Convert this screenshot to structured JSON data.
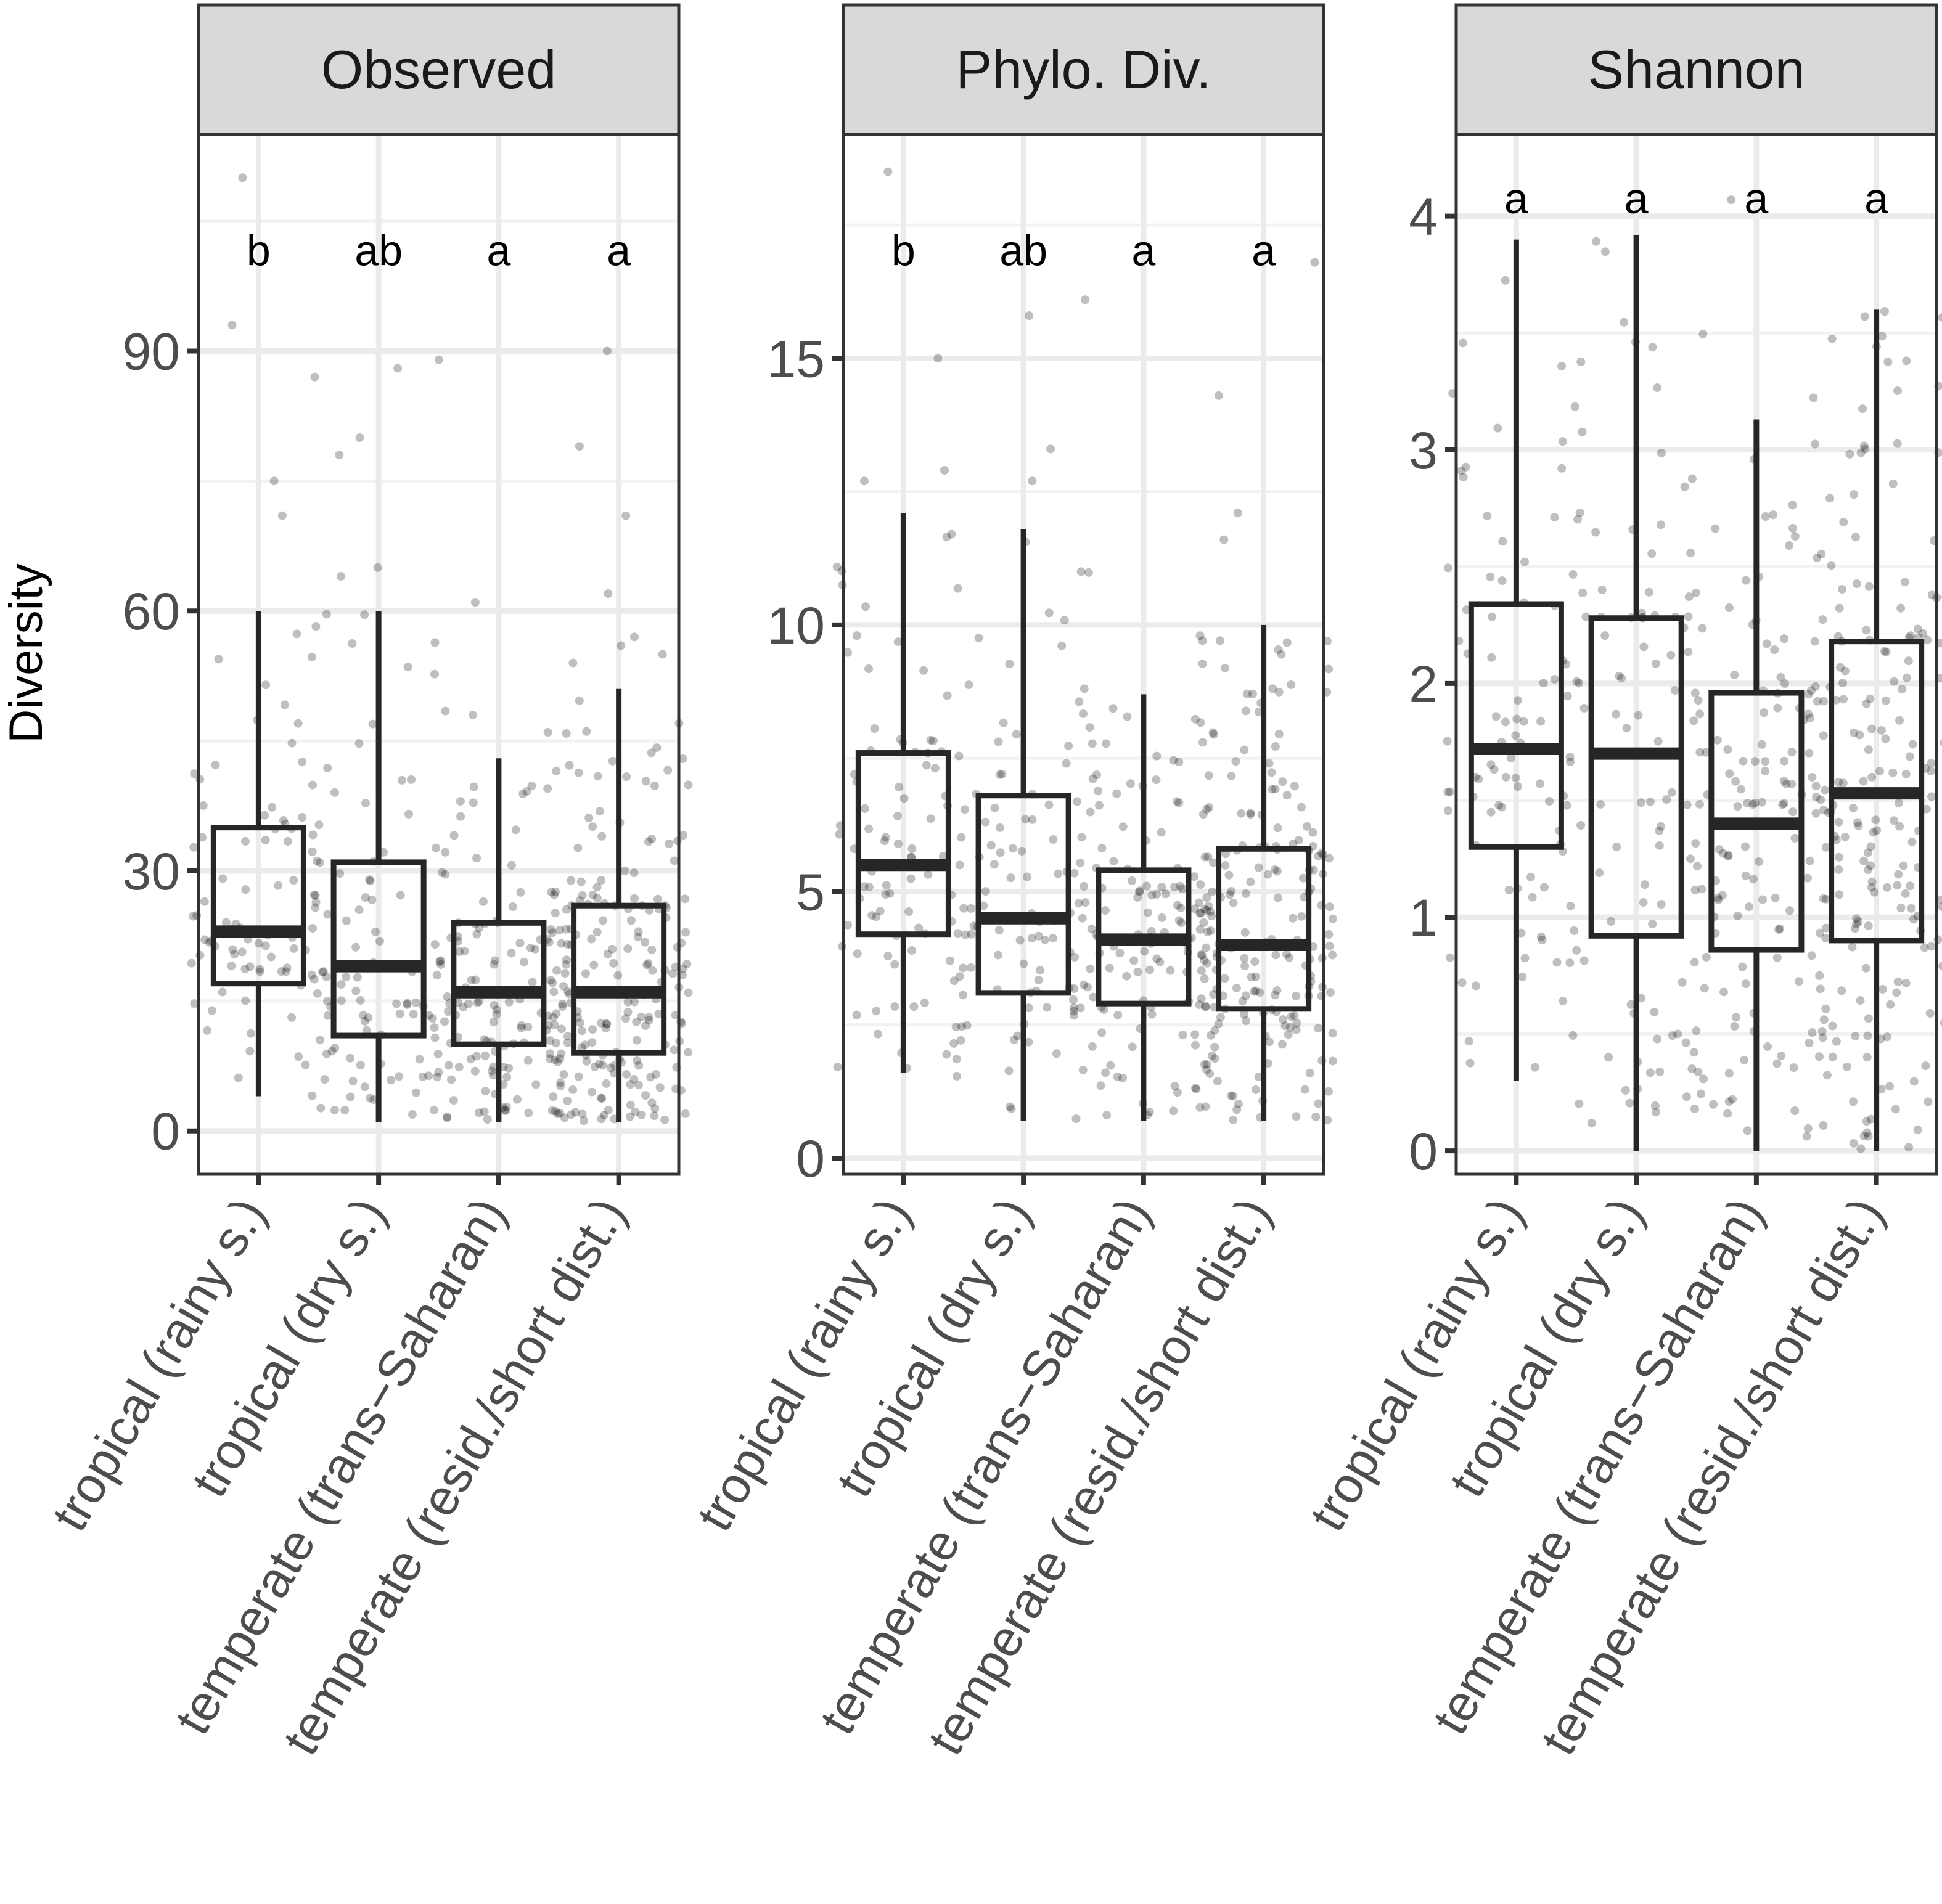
{
  "chart_data": {
    "type": "boxplot",
    "ylabel": "Diversity",
    "categories": [
      "tropical (rainy s.)",
      "tropical (dry s.)",
      "temperate (trans−Saharan)",
      "temperate (resid./short dist.)"
    ],
    "colors": {
      "box": "#262626",
      "point": "#000000",
      "strip": "#d9d9d9",
      "grid": "#ebebeb"
    },
    "panels": [
      {
        "title": "Observed",
        "ylim": [
          -5,
          115
        ],
        "yticks": [
          0,
          30,
          60,
          90
        ],
        "yticklabels": [
          "0",
          "30",
          "60",
          "90"
        ],
        "groups": [
          {
            "letter": "b",
            "whisker_low": 4,
            "q1": 17,
            "median": 23,
            "q3": 35,
            "whisker_high": 60,
            "outliers": [
              71,
              75,
              87,
              93,
              110
            ],
            "n": 90
          },
          {
            "letter": "ab",
            "whisker_low": 1,
            "q1": 11,
            "median": 19,
            "q3": 31,
            "whisker_high": 60,
            "outliers": [
              64,
              65,
              78,
              80,
              88,
              89
            ],
            "n": 90
          },
          {
            "letter": "a",
            "whisker_low": 1,
            "q1": 10,
            "median": 16,
            "q3": 24,
            "whisker_high": 43,
            "outliers": [
              46,
              48,
              61
            ],
            "n": 130
          },
          {
            "letter": "a",
            "whisker_low": 1,
            "q1": 9,
            "median": 16,
            "q3": 26,
            "whisker_high": 51,
            "outliers": [
              54,
              55,
              56,
              57,
              62,
              71,
              79,
              90
            ],
            "n": 200
          }
        ]
      },
      {
        "title": "Phylo. Div.",
        "ylim": [
          -0.3,
          19.2
        ],
        "yticks": [
          0,
          5,
          10,
          15
        ],
        "yticklabels": [
          "0",
          "5",
          "10",
          "15"
        ],
        "groups": [
          {
            "letter": "b",
            "whisker_low": 1.6,
            "q1": 4.2,
            "median": 5.5,
            "q3": 7.6,
            "whisker_high": 12.1,
            "outliers": [
              12.7,
              12.9,
              15.0,
              18.5
            ],
            "n": 90
          },
          {
            "letter": "ab",
            "whisker_low": 0.7,
            "q1": 3.1,
            "median": 4.5,
            "q3": 6.8,
            "whisker_high": 11.8,
            "outliers": [
              12.7,
              13.3,
              15.8
            ],
            "n": 90
          },
          {
            "letter": "a",
            "whisker_low": 0.7,
            "q1": 2.9,
            "median": 4.1,
            "q3": 5.4,
            "whisker_high": 8.7,
            "outliers": [
              9.8,
              11.0,
              16.1
            ],
            "n": 130
          },
          {
            "letter": "a",
            "whisker_low": 0.7,
            "q1": 2.8,
            "median": 4.0,
            "q3": 5.8,
            "whisker_high": 10.0,
            "outliers": [
              11.6,
              12.1,
              14.3,
              16.8
            ],
            "n": 200
          }
        ]
      },
      {
        "title": "Shannon",
        "ylim": [
          -0.1,
          4.35
        ],
        "yticks": [
          0,
          1,
          2,
          3,
          4
        ],
        "yticklabels": [
          "0",
          "1",
          "2",
          "3",
          "4"
        ],
        "groups": [
          {
            "letter": "a",
            "whisker_low": 0.3,
            "q1": 1.3,
            "median": 1.72,
            "q3": 2.34,
            "whisker_high": 3.9,
            "outliers": [],
            "n": 90
          },
          {
            "letter": "a",
            "whisker_low": 0.0,
            "q1": 0.92,
            "median": 1.7,
            "q3": 2.28,
            "whisker_high": 3.92,
            "outliers": [],
            "n": 90
          },
          {
            "letter": "a",
            "whisker_low": 0.0,
            "q1": 0.86,
            "median": 1.4,
            "q3": 1.96,
            "whisker_high": 3.13,
            "outliers": [
              4.07
            ],
            "n": 130
          },
          {
            "letter": "a",
            "whisker_low": 0.0,
            "q1": 0.9,
            "median": 1.53,
            "q3": 2.18,
            "whisker_high": 3.6,
            "outliers": [],
            "n": 200
          }
        ]
      }
    ]
  }
}
